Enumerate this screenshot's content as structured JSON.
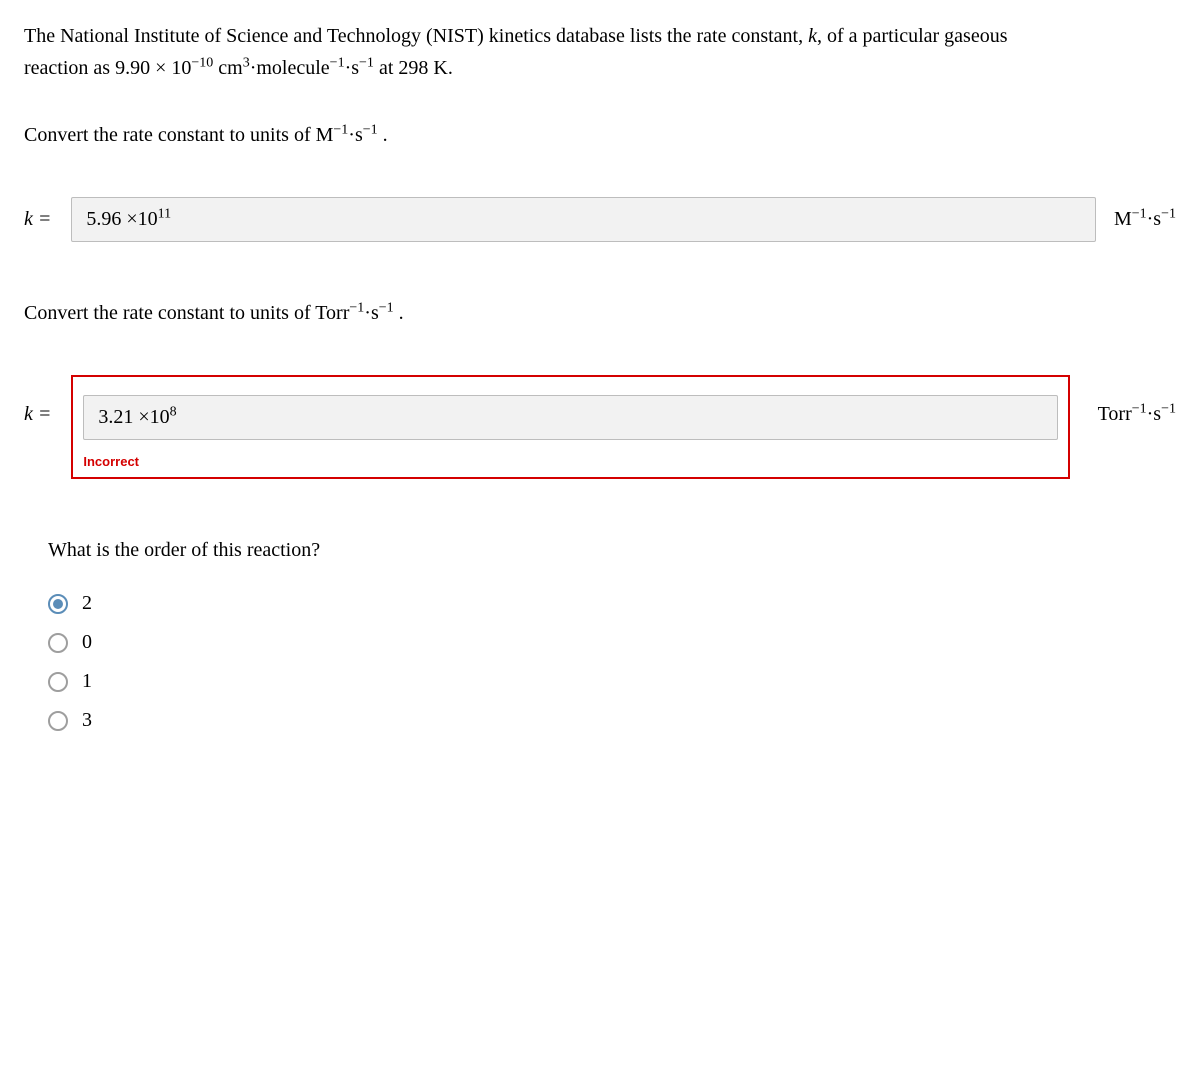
{
  "problem": {
    "line1_pre": "The National Institute of Science and Technology (NIST) kinetics database lists the rate constant, ",
    "k_var": "k",
    "line1_post": ", of a particular gaseous",
    "line2_pre": "reaction as ",
    "value": "9.90 × 10",
    "exp": "−10",
    "units_cm": "  cm",
    "cm_sup": "3",
    "mol": "·molecule",
    "mol_sup": "−1",
    "s": "·s",
    "s_sup": "−1",
    "at": " at 298 K."
  },
  "part1": {
    "prompt_pre": "Convert the rate constant to units of M",
    "prompt_sup1": "−1",
    "prompt_mid": "·s",
    "prompt_sup2": "−1",
    "prompt_end": " .",
    "k_label": "k =",
    "answer_val": "5.96 ×10",
    "answer_exp": "11",
    "unit_pre": "M",
    "unit_sup1": "−1",
    "unit_mid": "·s",
    "unit_sup2": "−1"
  },
  "part2": {
    "prompt_pre": "Convert the rate constant to units of Torr",
    "prompt_sup1": "−1",
    "prompt_mid": "·s",
    "prompt_sup2": "−1",
    "prompt_end": " .",
    "k_label": "k =",
    "answer_val": "3.21 ×10",
    "answer_exp": "8",
    "unit_pre": "Torr",
    "unit_sup1": "−1",
    "unit_mid": "·s",
    "unit_sup2": "−1",
    "incorrect": "Incorrect"
  },
  "mc": {
    "question": "What is the order of this reaction?",
    "options": [
      "2",
      "0",
      "1",
      "3"
    ],
    "selected_index": 0
  }
}
